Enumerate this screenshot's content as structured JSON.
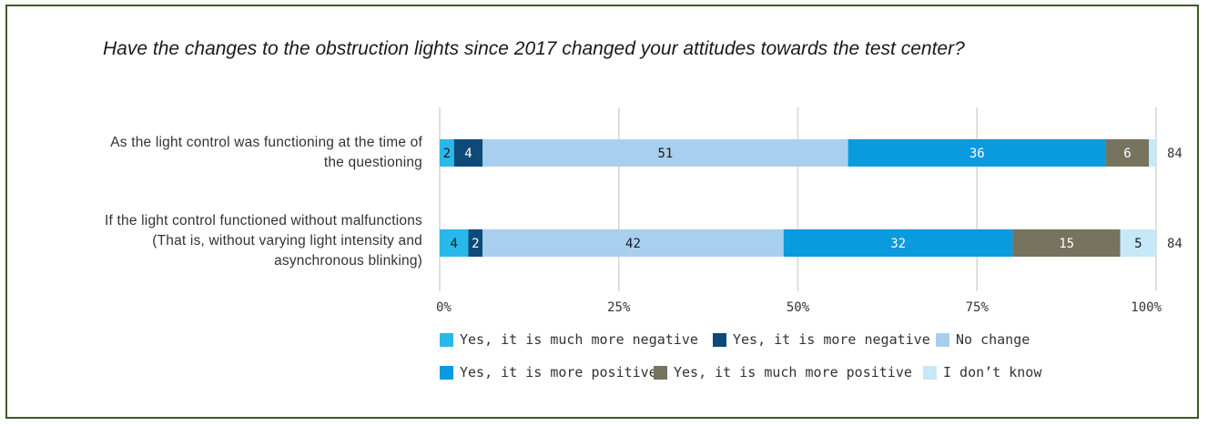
{
  "chart_data": {
    "type": "bar",
    "orientation": "horizontal",
    "stacked": true,
    "normalized": true,
    "title": "Have the changes to the obstruction lights since 2017 changed your attitudes towards the test center?",
    "categories": [
      "As the light control was functioning at the time of the questioning",
      "If the light control functioned without malfunctions (That is, without varying light intensity and asynchronous blinking)"
    ],
    "category_lines": [
      [
        "As the light control was functioning at the time of",
        "the questioning"
      ],
      [
        "If the light control functioned without malfunctions",
        "(That is, without varying light intensity and",
        "asynchronous blinking)"
      ]
    ],
    "series": [
      {
        "name": "Yes, it is much more negative",
        "color": "#29b8ea",
        "text_color": "#1a1a1a",
        "values": [
          2,
          4
        ]
      },
      {
        "name": "Yes, it is more negative",
        "color": "#0d4a78",
        "text_color": "#ffffff",
        "values": [
          4,
          2
        ]
      },
      {
        "name": "No change",
        "color": "#a9cfee",
        "text_color": "#1a1a1a",
        "values": [
          51,
          42
        ]
      },
      {
        "name": "Yes, it is more positive",
        "color": "#0a9ade",
        "text_color": "#ffffff",
        "values": [
          36,
          32
        ]
      },
      {
        "name": "Yes, it is much more positive",
        "color": "#76735e",
        "text_color": "#ffffff",
        "values": [
          6,
          15
        ]
      },
      {
        "name": "I don’t know",
        "color": "#c6e8f8",
        "text_color": "#1a1a1a",
        "values": [
          1,
          5
        ]
      }
    ],
    "hidden_labels": [
      [
        false,
        false,
        false,
        false,
        false,
        true
      ],
      [
        false,
        false,
        false,
        false,
        false,
        false
      ]
    ],
    "totals": [
      84,
      84
    ],
    "x_ticks": [
      "0%",
      "25%",
      "50%",
      "75%",
      "100%"
    ],
    "xlim": [
      0,
      100
    ],
    "legend_position": "bottom",
    "grid": true
  }
}
